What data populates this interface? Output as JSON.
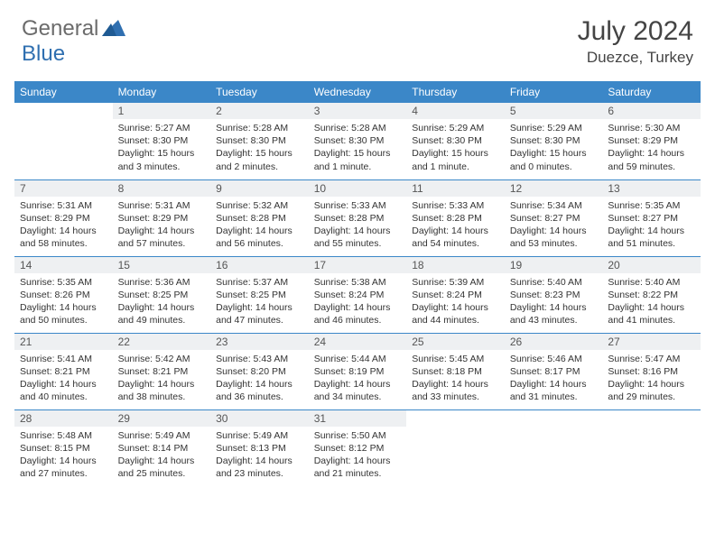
{
  "logo": {
    "part1": "General",
    "part2": "Blue"
  },
  "title": "July 2024",
  "location": "Duezce, Turkey",
  "colors": {
    "header_bg": "#3b87c8",
    "border": "#3b87c8",
    "daynum_bg": "#eef0f2",
    "logo_gray": "#6b6b6b",
    "logo_blue": "#2f6fb0"
  },
  "day_names": [
    "Sunday",
    "Monday",
    "Tuesday",
    "Wednesday",
    "Thursday",
    "Friday",
    "Saturday"
  ],
  "weeks": [
    [
      {
        "n": "",
        "sr": "",
        "ss": "",
        "dl": ""
      },
      {
        "n": "1",
        "sr": "Sunrise: 5:27 AM",
        "ss": "Sunset: 8:30 PM",
        "dl": "Daylight: 15 hours and 3 minutes."
      },
      {
        "n": "2",
        "sr": "Sunrise: 5:28 AM",
        "ss": "Sunset: 8:30 PM",
        "dl": "Daylight: 15 hours and 2 minutes."
      },
      {
        "n": "3",
        "sr": "Sunrise: 5:28 AM",
        "ss": "Sunset: 8:30 PM",
        "dl": "Daylight: 15 hours and 1 minute."
      },
      {
        "n": "4",
        "sr": "Sunrise: 5:29 AM",
        "ss": "Sunset: 8:30 PM",
        "dl": "Daylight: 15 hours and 1 minute."
      },
      {
        "n": "5",
        "sr": "Sunrise: 5:29 AM",
        "ss": "Sunset: 8:30 PM",
        "dl": "Daylight: 15 hours and 0 minutes."
      },
      {
        "n": "6",
        "sr": "Sunrise: 5:30 AM",
        "ss": "Sunset: 8:29 PM",
        "dl": "Daylight: 14 hours and 59 minutes."
      }
    ],
    [
      {
        "n": "7",
        "sr": "Sunrise: 5:31 AM",
        "ss": "Sunset: 8:29 PM",
        "dl": "Daylight: 14 hours and 58 minutes."
      },
      {
        "n": "8",
        "sr": "Sunrise: 5:31 AM",
        "ss": "Sunset: 8:29 PM",
        "dl": "Daylight: 14 hours and 57 minutes."
      },
      {
        "n": "9",
        "sr": "Sunrise: 5:32 AM",
        "ss": "Sunset: 8:28 PM",
        "dl": "Daylight: 14 hours and 56 minutes."
      },
      {
        "n": "10",
        "sr": "Sunrise: 5:33 AM",
        "ss": "Sunset: 8:28 PM",
        "dl": "Daylight: 14 hours and 55 minutes."
      },
      {
        "n": "11",
        "sr": "Sunrise: 5:33 AM",
        "ss": "Sunset: 8:28 PM",
        "dl": "Daylight: 14 hours and 54 minutes."
      },
      {
        "n": "12",
        "sr": "Sunrise: 5:34 AM",
        "ss": "Sunset: 8:27 PM",
        "dl": "Daylight: 14 hours and 53 minutes."
      },
      {
        "n": "13",
        "sr": "Sunrise: 5:35 AM",
        "ss": "Sunset: 8:27 PM",
        "dl": "Daylight: 14 hours and 51 minutes."
      }
    ],
    [
      {
        "n": "14",
        "sr": "Sunrise: 5:35 AM",
        "ss": "Sunset: 8:26 PM",
        "dl": "Daylight: 14 hours and 50 minutes."
      },
      {
        "n": "15",
        "sr": "Sunrise: 5:36 AM",
        "ss": "Sunset: 8:25 PM",
        "dl": "Daylight: 14 hours and 49 minutes."
      },
      {
        "n": "16",
        "sr": "Sunrise: 5:37 AM",
        "ss": "Sunset: 8:25 PM",
        "dl": "Daylight: 14 hours and 47 minutes."
      },
      {
        "n": "17",
        "sr": "Sunrise: 5:38 AM",
        "ss": "Sunset: 8:24 PM",
        "dl": "Daylight: 14 hours and 46 minutes."
      },
      {
        "n": "18",
        "sr": "Sunrise: 5:39 AM",
        "ss": "Sunset: 8:24 PM",
        "dl": "Daylight: 14 hours and 44 minutes."
      },
      {
        "n": "19",
        "sr": "Sunrise: 5:40 AM",
        "ss": "Sunset: 8:23 PM",
        "dl": "Daylight: 14 hours and 43 minutes."
      },
      {
        "n": "20",
        "sr": "Sunrise: 5:40 AM",
        "ss": "Sunset: 8:22 PM",
        "dl": "Daylight: 14 hours and 41 minutes."
      }
    ],
    [
      {
        "n": "21",
        "sr": "Sunrise: 5:41 AM",
        "ss": "Sunset: 8:21 PM",
        "dl": "Daylight: 14 hours and 40 minutes."
      },
      {
        "n": "22",
        "sr": "Sunrise: 5:42 AM",
        "ss": "Sunset: 8:21 PM",
        "dl": "Daylight: 14 hours and 38 minutes."
      },
      {
        "n": "23",
        "sr": "Sunrise: 5:43 AM",
        "ss": "Sunset: 8:20 PM",
        "dl": "Daylight: 14 hours and 36 minutes."
      },
      {
        "n": "24",
        "sr": "Sunrise: 5:44 AM",
        "ss": "Sunset: 8:19 PM",
        "dl": "Daylight: 14 hours and 34 minutes."
      },
      {
        "n": "25",
        "sr": "Sunrise: 5:45 AM",
        "ss": "Sunset: 8:18 PM",
        "dl": "Daylight: 14 hours and 33 minutes."
      },
      {
        "n": "26",
        "sr": "Sunrise: 5:46 AM",
        "ss": "Sunset: 8:17 PM",
        "dl": "Daylight: 14 hours and 31 minutes."
      },
      {
        "n": "27",
        "sr": "Sunrise: 5:47 AM",
        "ss": "Sunset: 8:16 PM",
        "dl": "Daylight: 14 hours and 29 minutes."
      }
    ],
    [
      {
        "n": "28",
        "sr": "Sunrise: 5:48 AM",
        "ss": "Sunset: 8:15 PM",
        "dl": "Daylight: 14 hours and 27 minutes."
      },
      {
        "n": "29",
        "sr": "Sunrise: 5:49 AM",
        "ss": "Sunset: 8:14 PM",
        "dl": "Daylight: 14 hours and 25 minutes."
      },
      {
        "n": "30",
        "sr": "Sunrise: 5:49 AM",
        "ss": "Sunset: 8:13 PM",
        "dl": "Daylight: 14 hours and 23 minutes."
      },
      {
        "n": "31",
        "sr": "Sunrise: 5:50 AM",
        "ss": "Sunset: 8:12 PM",
        "dl": "Daylight: 14 hours and 21 minutes."
      },
      {
        "n": "",
        "sr": "",
        "ss": "",
        "dl": ""
      },
      {
        "n": "",
        "sr": "",
        "ss": "",
        "dl": ""
      },
      {
        "n": "",
        "sr": "",
        "ss": "",
        "dl": ""
      }
    ]
  ]
}
